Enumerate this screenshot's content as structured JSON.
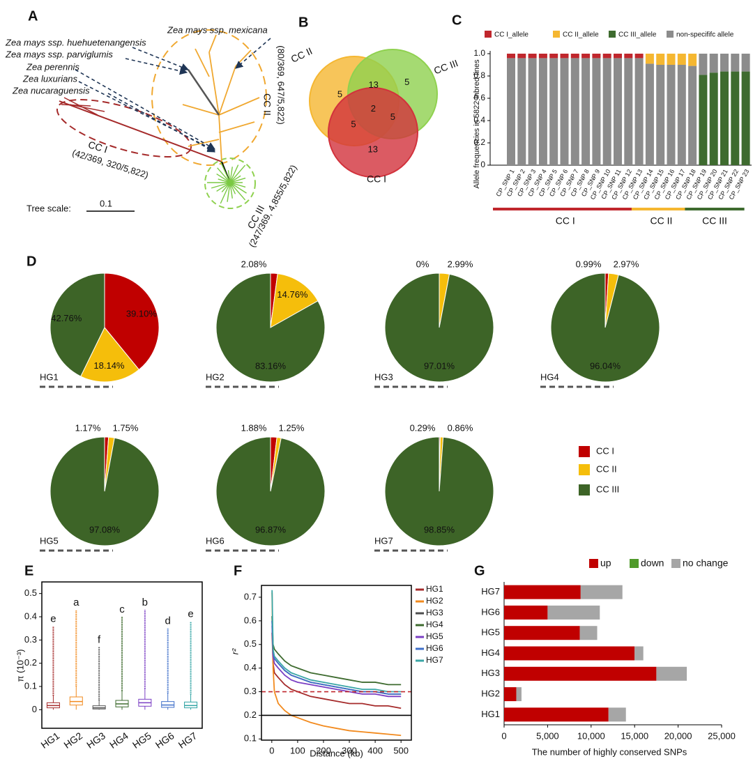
{
  "tree": {
    "panel": "A",
    "taxa": [
      "Zea mays ssp. mexicana",
      "Zea mays ssp. huehuetenangensis",
      "Zea mays ssp. parviglumis",
      "Zea perennis",
      "Zea luxurians",
      "Zea nucaraguensis"
    ],
    "scale_label": "Tree scale:",
    "scale_value": "0.1",
    "clades": [
      {
        "name": "CC I",
        "counts": "(42/369,  320/5,822)"
      },
      {
        "name": "CC II",
        "counts": "(80/369,  647/5,822)"
      },
      {
        "name": "CC III",
        "counts": "(247/369,  4,855/5,822)"
      }
    ]
  },
  "chart_data": [
    {
      "type": "venn",
      "panel": "B",
      "sets": [
        {
          "name": "CC II",
          "color": "#f5b731"
        },
        {
          "name": "CC III",
          "color": "#8fd14f"
        },
        {
          "name": "CC I",
          "color": "#d2323c"
        }
      ],
      "regions": [
        {
          "sets": [
            "CC II"
          ],
          "value": 5
        },
        {
          "sets": [
            "CC III"
          ],
          "value": 5
        },
        {
          "sets": [
            "CC I"
          ],
          "value": 13
        },
        {
          "sets": [
            "CC II",
            "CC III"
          ],
          "value": 13
        },
        {
          "sets": [
            "CC II",
            "CC I"
          ],
          "value": 5
        },
        {
          "sets": [
            "CC III",
            "CC I"
          ],
          "value": 5
        },
        {
          "sets": [
            "CC II",
            "CC III",
            "CC I"
          ],
          "value": 2
        }
      ]
    },
    {
      "type": "stacked_bar",
      "panel": "C",
      "y_label": "Allele frequencies in 5822 inbred lines",
      "categories": [
        "CP_SNP 1",
        "CP_SNP 2",
        "CP_SNP 3",
        "CP_SNP 4",
        "CP_SNP 5",
        "CP_SNP 6",
        "CP_SNP 7",
        "CP_SNP 8",
        "CP_SNP 9",
        "CP_SNP 10",
        "CP_SNP 11",
        "CP_SNP 12",
        "CP_SNP 13",
        "CP_SNP 14",
        "CP_SNP 15",
        "CP_SNP 16",
        "CP_SNP 17",
        "CP_SNP 18",
        "CP_SNP 19",
        "CP_SNP 20",
        "CP_SNP 21",
        "CP_SNP 22",
        "CP_SNP 23"
      ],
      "series": [
        {
          "name": "CC III_allele",
          "color": "#3e6b2f",
          "values": [
            0,
            0,
            0,
            0,
            0,
            0,
            0,
            0,
            0,
            0,
            0,
            0,
            0,
            0,
            0,
            0,
            0,
            0,
            0.81,
            0.83,
            0.84,
            0.84,
            0.84
          ]
        },
        {
          "name": "non-specififc allele",
          "color": "#8c8c8c",
          "values": [
            0.96,
            0.96,
            0.96,
            0.96,
            0.96,
            0.96,
            0.96,
            0.96,
            0.96,
            0.96,
            0.96,
            0.96,
            0.96,
            0.91,
            0.9,
            0.9,
            0.9,
            0.89,
            0.19,
            0.17,
            0.16,
            0.16,
            0.16
          ]
        },
        {
          "name": "CC I_allele",
          "color": "#c0272d",
          "values": [
            0.04,
            0.04,
            0.04,
            0.04,
            0.04,
            0.04,
            0.04,
            0.04,
            0.04,
            0.04,
            0.04,
            0.04,
            0.04,
            0,
            0,
            0,
            0,
            0,
            0,
            0,
            0,
            0,
            0
          ]
        },
        {
          "name": "CC II_allele",
          "color": "#f5b731",
          "values": [
            0,
            0,
            0,
            0,
            0,
            0,
            0,
            0,
            0,
            0,
            0,
            0,
            0,
            0.09,
            0.1,
            0.1,
            0.1,
            0.11,
            0,
            0,
            0,
            0,
            0
          ]
        }
      ],
      "legend_order": [
        "CC I_allele",
        "CC II_allele",
        "CC III_allele",
        "non-specififc allele"
      ],
      "ylim": [
        0,
        1
      ],
      "yticks": [
        0,
        0.2,
        0.4,
        0.6,
        0.8,
        {
          "value": 1,
          "label": "1.0"
        }
      ],
      "group_labels": [
        "CC I",
        "CC II",
        "CC III"
      ],
      "group_colors": [
        "#c0272d",
        "#f5b731",
        "#3e6b2f"
      ]
    },
    {
      "type": "pie_grid",
      "panel": "D",
      "legend": [
        "CC I",
        "CC II",
        "CC III"
      ],
      "colors": [
        "#c00000",
        "#f5be0b",
        "#3d6427"
      ],
      "pies": [
        {
          "name": "HG1",
          "values": [
            39.1,
            18.14,
            42.76
          ],
          "value_labels": [
            "39.10%",
            "18.14%",
            "42.76%"
          ]
        },
        {
          "name": "HG2",
          "values": [
            2.08,
            14.76,
            83.16
          ],
          "value_labels": [
            "2.08%",
            "14.76%",
            "83.16%"
          ]
        },
        {
          "name": "HG3",
          "values": [
            0,
            2.99,
            97.01
          ],
          "value_labels": [
            "0%",
            "2.99%",
            "97.01%"
          ]
        },
        {
          "name": "HG4",
          "values": [
            0.99,
            2.97,
            96.04
          ],
          "value_labels": [
            "0.99%",
            "2.97%",
            "96.04%"
          ]
        },
        {
          "name": "HG5",
          "values": [
            1.17,
            1.75,
            97.08
          ],
          "value_labels": [
            "1.17%",
            "1.75%",
            "97.08%"
          ]
        },
        {
          "name": "HG6",
          "values": [
            1.88,
            1.25,
            96.87
          ],
          "value_labels": [
            "1.88%",
            "1.25%",
            "96.87%"
          ]
        },
        {
          "name": "HG7",
          "values": [
            0.29,
            0.86,
            98.85
          ],
          "value_labels": [
            "0.29%",
            "0.86%",
            "98.85%"
          ]
        }
      ]
    },
    {
      "type": "box",
      "panel": "E",
      "y_label": "π (10⁻³)",
      "categories": [
        "HG1",
        "HG2",
        "HG3",
        "HG4",
        "HG5",
        "HG6",
        "HG7"
      ],
      "colors": [
        "#a52a2a",
        "#f28a1e",
        "#555555",
        "#3e6b2f",
        "#7b3fc4",
        "#3f6fc9",
        "#2fa3a3"
      ],
      "whisker_low": [
        0,
        0,
        0,
        0,
        0,
        0,
        0
      ],
      "q1": [
        0.008,
        0.02,
        0.003,
        0.012,
        0.015,
        0.01,
        0.008
      ],
      "median": [
        0.018,
        0.035,
        0.008,
        0.025,
        0.03,
        0.02,
        0.018
      ],
      "q3": [
        0.03,
        0.055,
        0.017,
        0.04,
        0.045,
        0.035,
        0.033
      ],
      "whisker_high": [
        0.06,
        0.1,
        0.04,
        0.08,
        0.09,
        0.07,
        0.065
      ],
      "outlier_max": [
        0.36,
        0.43,
        0.27,
        0.4,
        0.43,
        0.35,
        0.38
      ],
      "letters": [
        "e",
        "a",
        "f",
        "c",
        "b",
        "d",
        "e"
      ],
      "ylim": [
        -0.08,
        0.55
      ],
      "yticks": [
        0,
        0.1,
        0.2,
        0.3,
        0.4,
        0.5
      ]
    },
    {
      "type": "line",
      "panel": "F",
      "x_label": "Distance (kb)",
      "y_label": "r²",
      "x": [
        1,
        5,
        10,
        25,
        50,
        75,
        100,
        150,
        200,
        250,
        300,
        350,
        400,
        450,
        500
      ],
      "series": [
        {
          "name": "HG1",
          "color": "#a52a2a",
          "values": [
            0.55,
            0.42,
            0.38,
            0.36,
            0.33,
            0.31,
            0.3,
            0.28,
            0.27,
            0.26,
            0.25,
            0.25,
            0.24,
            0.24,
            0.23
          ]
        },
        {
          "name": "HG2",
          "color": "#f28a1e",
          "values": [
            0.72,
            0.4,
            0.3,
            0.25,
            0.22,
            0.2,
            0.19,
            0.17,
            0.155,
            0.145,
            0.135,
            0.13,
            0.125,
            0.12,
            0.115
          ]
        },
        {
          "name": "HG3",
          "color": "#4d4d4d",
          "values": [
            0.6,
            0.46,
            0.44,
            0.42,
            0.39,
            0.37,
            0.36,
            0.34,
            0.33,
            0.32,
            0.31,
            0.3,
            0.3,
            0.29,
            0.29
          ]
        },
        {
          "name": "HG4",
          "color": "#3e6b2f",
          "values": [
            0.62,
            0.5,
            0.48,
            0.46,
            0.43,
            0.41,
            0.4,
            0.38,
            0.37,
            0.36,
            0.35,
            0.34,
            0.34,
            0.33,
            0.33
          ]
        },
        {
          "name": "HG5",
          "color": "#7b3fc4",
          "values": [
            0.58,
            0.45,
            0.42,
            0.4,
            0.37,
            0.35,
            0.34,
            0.33,
            0.32,
            0.31,
            0.3,
            0.29,
            0.29,
            0.28,
            0.28
          ]
        },
        {
          "name": "HG6",
          "color": "#3f6fc9",
          "values": [
            0.6,
            0.47,
            0.44,
            0.42,
            0.39,
            0.37,
            0.36,
            0.34,
            0.33,
            0.32,
            0.31,
            0.3,
            0.3,
            0.29,
            0.29
          ]
        },
        {
          "name": "HG7",
          "color": "#3aa6a6",
          "values": [
            0.73,
            0.48,
            0.45,
            0.43,
            0.4,
            0.38,
            0.37,
            0.35,
            0.34,
            0.33,
            0.32,
            0.31,
            0.31,
            0.3,
            0.3
          ]
        }
      ],
      "hlines": [
        {
          "value": 0.3,
          "color": "#c0272d",
          "style": "dashed"
        },
        {
          "value": 0.2,
          "color": "#000000",
          "style": "solid"
        }
      ],
      "xlim": [
        -40,
        540
      ],
      "xticks": [
        0,
        100,
        200,
        300,
        400,
        500
      ],
      "ylim": [
        0.095,
        0.75
      ],
      "yticks": [
        0.1,
        0.2,
        0.3,
        0.4,
        0.5,
        0.6,
        0.7
      ]
    },
    {
      "type": "hbar_stacked",
      "panel": "G",
      "x_label": "The number of highly conserved SNPs",
      "categories": [
        "HG1",
        "HG2",
        "HG3",
        "HG4",
        "HG5",
        "HG6",
        "HG7"
      ],
      "series": [
        {
          "name": "up",
          "color": "#c00000",
          "values": [
            12000,
            1400,
            17500,
            15000,
            8700,
            5000,
            8800
          ]
        },
        {
          "name": "down",
          "color": "#4f9a2a",
          "values": [
            0,
            0,
            0,
            0,
            0,
            0,
            0
          ]
        },
        {
          "name": "no change",
          "color": "#a6a6a6",
          "values": [
            2000,
            600,
            3500,
            1000,
            2000,
            6000,
            4800
          ]
        }
      ],
      "xlim": [
        0,
        25000
      ],
      "xticks": [
        0,
        {
          "value": 5000,
          "label": "5,000"
        },
        {
          "value": 10000,
          "label": "10,000"
        },
        {
          "value": 15000,
          "label": "15,000"
        },
        {
          "value": 20000,
          "label": "20,000"
        },
        {
          "value": 25000,
          "label": "25,000"
        }
      ]
    }
  ]
}
